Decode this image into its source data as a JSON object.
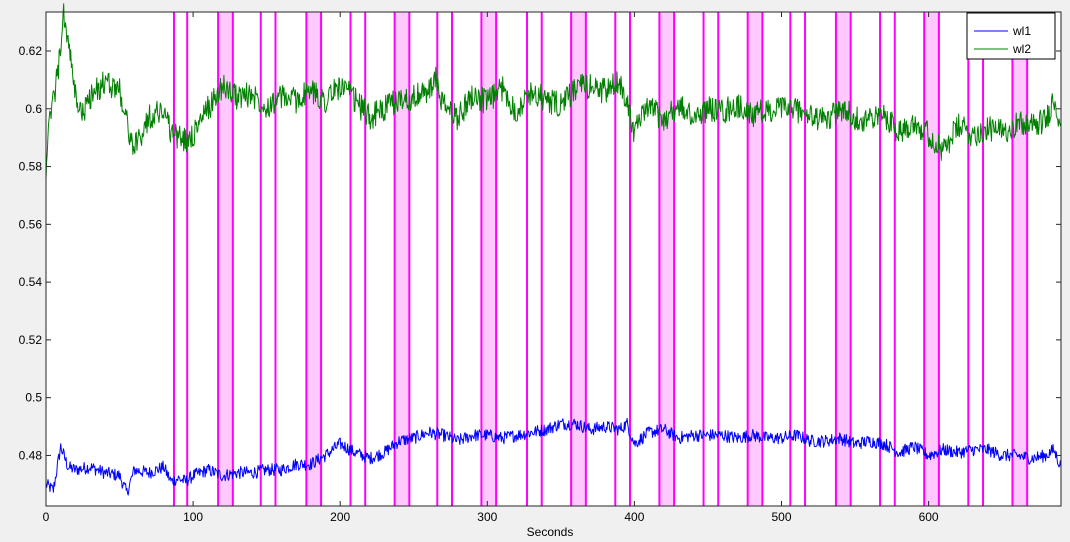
{
  "chart_data": {
    "type": "line",
    "title": "",
    "xlabel": "Seconds",
    "ylabel": "",
    "xlim": [
      0,
      690
    ],
    "ylim": [
      0.4625,
      0.6335
    ],
    "xticks": [
      0,
      100,
      200,
      300,
      400,
      500,
      600
    ],
    "yticks": [
      0.48,
      0.5,
      0.52,
      0.54,
      0.56,
      0.58,
      0.6,
      0.62
    ],
    "ytick_labels": [
      "0.48",
      "0.5",
      "0.52",
      "0.54",
      "0.56",
      "0.58",
      "0.6",
      "0.62"
    ],
    "grid": false,
    "legend": {
      "position": "top-right",
      "entries": [
        "wl1",
        "wl2"
      ]
    },
    "colors": {
      "wl1": "#0000ff",
      "wl2": "#008000",
      "event": "#ff00ff",
      "event_fill": "#ffc8ff"
    },
    "series": [
      {
        "name": "wl1",
        "x": [
          0,
          5,
          10,
          15,
          20,
          30,
          40,
          50,
          55,
          60,
          70,
          80,
          85,
          90,
          95,
          100,
          110,
          120,
          130,
          140,
          150,
          160,
          170,
          180,
          190,
          200,
          210,
          220,
          230,
          240,
          250,
          260,
          270,
          280,
          290,
          300,
          310,
          320,
          330,
          340,
          350,
          360,
          370,
          380,
          390,
          395,
          400,
          410,
          420,
          430,
          440,
          450,
          460,
          470,
          480,
          490,
          500,
          510,
          520,
          530,
          540,
          550,
          560,
          570,
          580,
          590,
          600,
          610,
          620,
          630,
          640,
          650,
          660,
          670,
          680,
          685,
          690
        ],
        "y": [
          0.47,
          0.468,
          0.483,
          0.476,
          0.475,
          0.476,
          0.474,
          0.473,
          0.467,
          0.475,
          0.474,
          0.476,
          0.471,
          0.472,
          0.471,
          0.473,
          0.475,
          0.473,
          0.474,
          0.474,
          0.475,
          0.475,
          0.477,
          0.477,
          0.48,
          0.484,
          0.481,
          0.479,
          0.481,
          0.485,
          0.486,
          0.488,
          0.487,
          0.485,
          0.487,
          0.487,
          0.486,
          0.487,
          0.488,
          0.489,
          0.491,
          0.491,
          0.489,
          0.49,
          0.489,
          0.491,
          0.484,
          0.488,
          0.489,
          0.486,
          0.487,
          0.487,
          0.487,
          0.486,
          0.487,
          0.486,
          0.486,
          0.487,
          0.485,
          0.485,
          0.486,
          0.484,
          0.485,
          0.484,
          0.481,
          0.483,
          0.48,
          0.482,
          0.481,
          0.482,
          0.482,
          0.48,
          0.48,
          0.479,
          0.48,
          0.482,
          0.476
        ]
      },
      {
        "name": "wl2",
        "x": [
          0,
          3,
          8,
          12,
          15,
          20,
          25,
          30,
          40,
          50,
          55,
          60,
          70,
          80,
          85,
          90,
          95,
          100,
          110,
          120,
          130,
          140,
          150,
          160,
          170,
          180,
          190,
          200,
          210,
          220,
          230,
          240,
          250,
          260,
          265,
          270,
          280,
          290,
          300,
          310,
          320,
          330,
          340,
          350,
          360,
          370,
          380,
          390,
          395,
          400,
          410,
          420,
          430,
          440,
          450,
          460,
          470,
          480,
          490,
          500,
          510,
          520,
          530,
          540,
          550,
          560,
          570,
          580,
          590,
          600,
          610,
          620,
          630,
          640,
          650,
          660,
          670,
          680,
          685,
          690
        ],
        "y": [
          0.58,
          0.598,
          0.612,
          0.632,
          0.624,
          0.604,
          0.598,
          0.604,
          0.609,
          0.607,
          0.595,
          0.586,
          0.597,
          0.6,
          0.592,
          0.59,
          0.589,
          0.591,
          0.6,
          0.608,
          0.604,
          0.605,
          0.601,
          0.604,
          0.603,
          0.606,
          0.603,
          0.608,
          0.603,
          0.597,
          0.6,
          0.603,
          0.604,
          0.606,
          0.61,
          0.601,
          0.597,
          0.605,
          0.602,
          0.607,
          0.599,
          0.606,
          0.603,
          0.601,
          0.607,
          0.608,
          0.606,
          0.609,
          0.603,
          0.592,
          0.601,
          0.596,
          0.601,
          0.597,
          0.6,
          0.599,
          0.601,
          0.598,
          0.599,
          0.6,
          0.6,
          0.597,
          0.596,
          0.6,
          0.597,
          0.596,
          0.598,
          0.592,
          0.596,
          0.591,
          0.585,
          0.594,
          0.591,
          0.593,
          0.592,
          0.595,
          0.594,
          0.596,
          0.604,
          0.595
        ]
      }
    ],
    "events": [
      {
        "type": "line",
        "x": 87
      },
      {
        "type": "line",
        "x": 96
      },
      {
        "type": "band",
        "x": [
          117,
          127
        ]
      },
      {
        "type": "line",
        "x": 146
      },
      {
        "type": "line",
        "x": 156
      },
      {
        "type": "band",
        "x": [
          177,
          187
        ]
      },
      {
        "type": "line",
        "x": 207
      },
      {
        "type": "line",
        "x": 217
      },
      {
        "type": "band",
        "x": [
          237,
          247
        ]
      },
      {
        "type": "line",
        "x": 266
      },
      {
        "type": "line",
        "x": 276
      },
      {
        "type": "band",
        "x": [
          296,
          306
        ]
      },
      {
        "type": "line",
        "x": 327
      },
      {
        "type": "line",
        "x": 337
      },
      {
        "type": "band",
        "x": [
          357,
          367
        ]
      },
      {
        "type": "line",
        "x": 387
      },
      {
        "type": "line",
        "x": 397
      },
      {
        "type": "band",
        "x": [
          417,
          427
        ]
      },
      {
        "type": "line",
        "x": 447
      },
      {
        "type": "line",
        "x": 457
      },
      {
        "type": "band",
        "x": [
          477,
          487
        ]
      },
      {
        "type": "line",
        "x": 506
      },
      {
        "type": "line",
        "x": 516
      },
      {
        "type": "band",
        "x": [
          537,
          547
        ]
      },
      {
        "type": "line",
        "x": 567
      },
      {
        "type": "line",
        "x": 577
      },
      {
        "type": "band",
        "x": [
          597,
          607
        ]
      },
      {
        "type": "line",
        "x": 627
      },
      {
        "type": "line",
        "x": 637
      },
      {
        "type": "band",
        "x": [
          657,
          667
        ]
      }
    ]
  }
}
